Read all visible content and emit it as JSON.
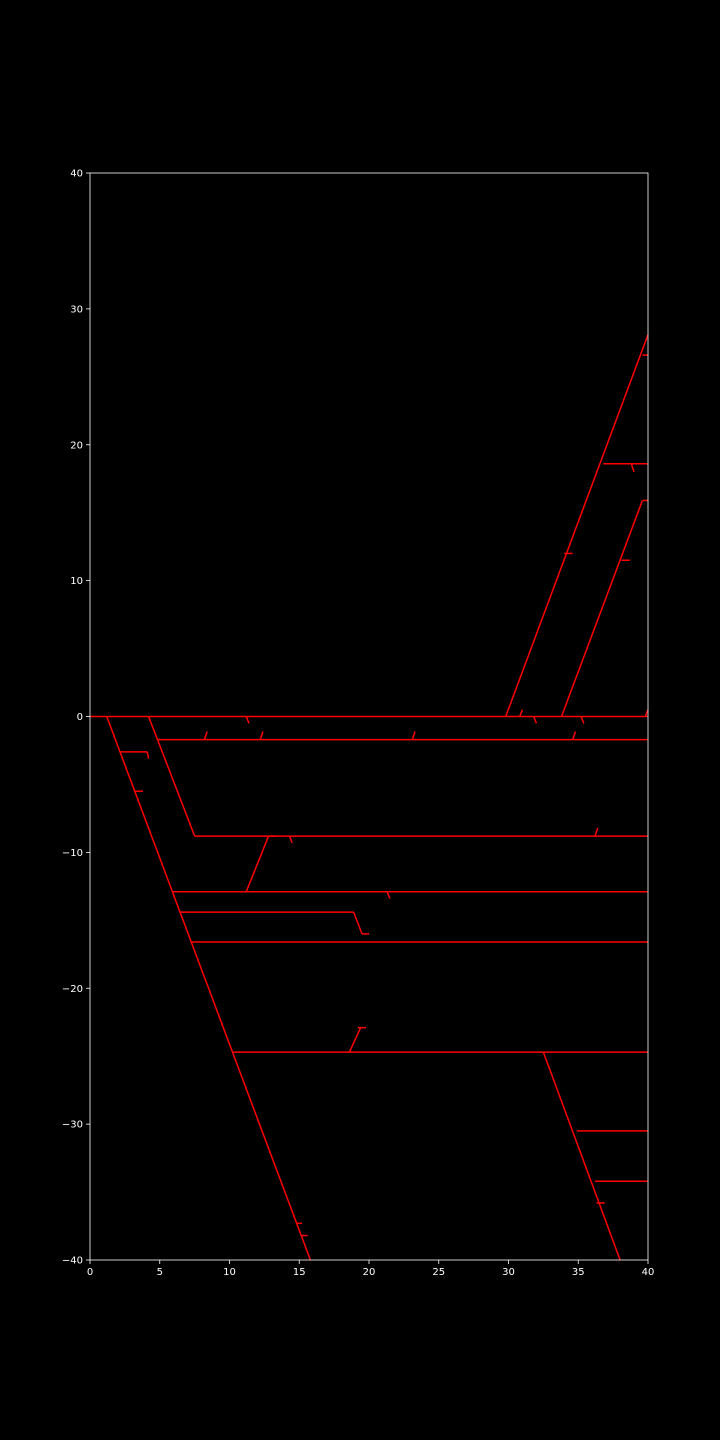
{
  "chart_data": {
    "type": "line",
    "title": "",
    "xlabel": "",
    "ylabel": "",
    "xlim": [
      0,
      40
    ],
    "ylim": [
      -40,
      40
    ],
    "grid": false,
    "xticks": [
      "0",
      "5",
      "10",
      "15",
      "20",
      "25",
      "30",
      "35",
      "40"
    ],
    "yticks": [
      "40",
      "30",
      "20",
      "10",
      "0",
      "−10",
      "−20",
      "−30",
      "−40"
    ],
    "xtick_values": [
      0,
      5,
      10,
      15,
      20,
      25,
      30,
      35,
      40
    ],
    "ytick_values": [
      40,
      30,
      20,
      10,
      0,
      -10,
      -20,
      -30,
      -40
    ],
    "background_color": "#000000",
    "axis_color": "#ffffff",
    "line_color": "#ff0000",
    "segments": [
      [
        [
          0,
          0
        ],
        [
          40,
          0
        ]
      ],
      [
        [
          1.2,
          0
        ],
        [
          15.8,
          -40
        ]
      ],
      [
        [
          4.2,
          0
        ],
        [
          7.5,
          -8.8
        ]
      ],
      [
        [
          4.8,
          -1.7
        ],
        [
          40,
          -1.7
        ]
      ],
      [
        [
          7.5,
          -8.8
        ],
        [
          40,
          -8.8
        ]
      ],
      [
        [
          12.8,
          -8.8
        ],
        [
          11.2,
          -12.9
        ]
      ],
      [
        [
          5.9,
          -12.9
        ],
        [
          40,
          -12.9
        ]
      ],
      [
        [
          6.5,
          -14.4
        ],
        [
          18.9,
          -14.4
        ]
      ],
      [
        [
          18.9,
          -14.4
        ],
        [
          19.5,
          -16.0
        ]
      ],
      [
        [
          7.2,
          -16.6
        ],
        [
          40,
          -16.6
        ]
      ],
      [
        [
          10.2,
          -24.7
        ],
        [
          40,
          -24.7
        ]
      ],
      [
        [
          18.6,
          -24.7
        ],
        [
          19.4,
          -22.9
        ]
      ],
      [
        [
          29.8,
          0
        ],
        [
          40,
          28.1
        ]
      ],
      [
        [
          33.8,
          0
        ],
        [
          39.6,
          15.9
        ]
      ],
      [
        [
          36.8,
          18.6
        ],
        [
          40,
          18.6
        ]
      ],
      [
        [
          32.5,
          -24.7
        ],
        [
          38.0,
          -40
        ]
      ],
      [
        [
          34.9,
          -30.5
        ],
        [
          40,
          -30.5
        ]
      ],
      [
        [
          36.2,
          -34.2
        ],
        [
          40,
          -34.2
        ]
      ],
      [
        [
          2.2,
          -2.6
        ],
        [
          4.1,
          -2.6
        ]
      ],
      [
        [
          4.1,
          -2.6
        ],
        [
          4.2,
          -3.1
        ]
      ],
      [
        [
          3.2,
          -5.5
        ],
        [
          3.8,
          -5.5
        ]
      ],
      [
        [
          11.2,
          0
        ],
        [
          11.4,
          -0.5
        ]
      ],
      [
        [
          8.2,
          -1.7
        ],
        [
          8.4,
          -1.1
        ]
      ],
      [
        [
          12.2,
          -1.7
        ],
        [
          12.4,
          -1.1
        ]
      ],
      [
        [
          23.1,
          -1.7
        ],
        [
          23.3,
          -1.1
        ]
      ],
      [
        [
          30.8,
          0
        ],
        [
          31.0,
          0.5
        ]
      ],
      [
        [
          31.8,
          0
        ],
        [
          32.0,
          -0.5
        ]
      ],
      [
        [
          35.2,
          0
        ],
        [
          35.4,
          -0.5
        ]
      ],
      [
        [
          34.6,
          -1.7
        ],
        [
          34.8,
          -1.1
        ]
      ],
      [
        [
          39.8,
          0
        ],
        [
          40,
          0.5
        ]
      ],
      [
        [
          36.2,
          -8.8
        ],
        [
          36.4,
          -8.2
        ]
      ],
      [
        [
          12.8,
          -8.8
        ],
        [
          13.3,
          -8.8
        ]
      ],
      [
        [
          14.3,
          -8.8
        ],
        [
          14.5,
          -9.3
        ]
      ],
      [
        [
          21.3,
          -12.9
        ],
        [
          21.5,
          -13.4
        ]
      ],
      [
        [
          19.5,
          -16.0
        ],
        [
          20.0,
          -16.0
        ]
      ],
      [
        [
          19.2,
          -22.9
        ],
        [
          19.8,
          -22.9
        ]
      ],
      [
        [
          34.0,
          12.0
        ],
        [
          34.6,
          12.0
        ]
      ],
      [
        [
          38.1,
          11.5
        ],
        [
          38.7,
          11.5
        ]
      ],
      [
        [
          38.8,
          18.6
        ],
        [
          39.0,
          18.0
        ]
      ],
      [
        [
          39.6,
          15.9
        ],
        [
          40,
          15.9
        ]
      ],
      [
        [
          39.6,
          26.6
        ],
        [
          40,
          26.6
        ]
      ],
      [
        [
          36.3,
          -35.8
        ],
        [
          36.9,
          -35.8
        ]
      ],
      [
        [
          14.8,
          -37.3
        ],
        [
          15.2,
          -37.3
        ]
      ],
      [
        [
          15.2,
          -38.2
        ],
        [
          15.6,
          -38.2
        ]
      ]
    ]
  }
}
